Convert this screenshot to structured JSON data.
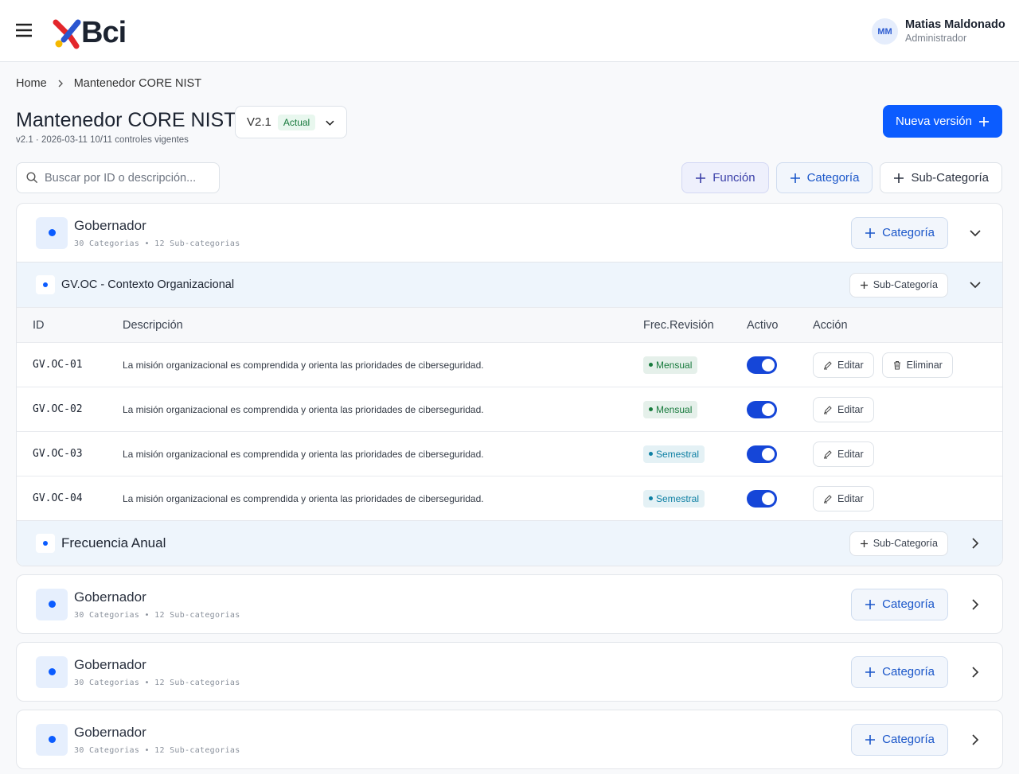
{
  "header": {
    "brand": "Bci",
    "user_initials": "MM",
    "user_name": "Matias Maldonado",
    "user_role": "Administrador"
  },
  "breadcrumb": [
    "Home",
    "Mantenedor CORE NIST"
  ],
  "page": {
    "title": "Mantenedor CORE NIST",
    "version": "V2.1",
    "version_status": "Actual",
    "meta": "v2.1 · 2026-03-11 10/11 controles vigentes",
    "new_version_button": "Nueva versión"
  },
  "toolbar": {
    "search_placeholder": "Buscar por ID o descripción...",
    "buttons": [
      "Función",
      "Categoría",
      "Sub-Categoría"
    ]
  },
  "table_columns": [
    "ID",
    "Descripción",
    "Frec.Revisión",
    "Activo",
    "Acción"
  ],
  "groups": [
    {
      "title": "Gobernador",
      "meta": "30 Categorias • 12 Sub-categorias",
      "action": "Categoría",
      "categories": [
        {
          "title": "GV.OC - Contexto Organizacional",
          "action": "Sub-Categoría",
          "rows": [
            {
              "id": "GV.OC-01",
              "description": "La misión organizacional es comprendida y orienta las prioridades de ciberseguridad.",
              "frequency": "Mensual",
              "frequency_color": "#177a3c",
              "active": true,
              "actions": [
                "Editar",
                "Eliminar"
              ]
            },
            {
              "id": "GV.OC-02",
              "description": "La misión organizacional es comprendida y orienta las prioridades de ciberseguridad.",
              "frequency": "Mensual",
              "frequency_color": "#177a3c",
              "active": true,
              "actions": [
                "Editar"
              ]
            },
            {
              "id": "GV.OC-03",
              "description": "La misión organizacional es comprendida y orienta las prioridades de ciberseguridad.",
              "frequency": "Semestral",
              "frequency_color": "#0d7fa3",
              "active": true,
              "actions": [
                "Editar"
              ]
            },
            {
              "id": "GV.OC-04",
              "description": "La misión organizacional es comprendida y orienta las prioridades de ciberseguridad.",
              "frequency": "Semestral",
              "frequency_color": "#0d7fa3",
              "active": true,
              "actions": [
                "Editar"
              ]
            }
          ]
        },
        {
          "title": "Frecuencia Anual",
          "action": "Sub-Categoría"
        }
      ]
    },
    {
      "title": "Gobernador",
      "meta": "30 Categorias • 12 Sub-categorias",
      "action": "Categoría"
    },
    {
      "title": "Gobernador",
      "meta": "30 Categorias • 12 Sub-categorias",
      "action": "Categoría"
    },
    {
      "title": "Gobernador",
      "meta": "30 Categorias • 12 Sub-categorias",
      "action": "Categoría"
    }
  ]
}
